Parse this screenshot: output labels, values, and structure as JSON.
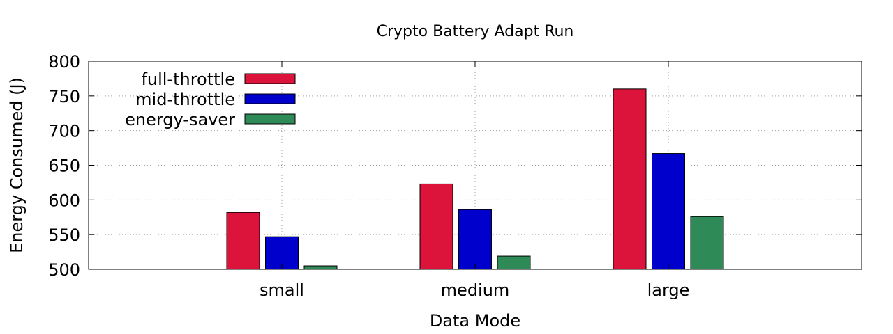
{
  "chart_data": {
    "type": "bar",
    "title": "Crypto Battery Adapt Run",
    "xlabel": "Data Mode",
    "ylabel": "Energy Consumed (J)",
    "categories": [
      "small",
      "medium",
      "large"
    ],
    "ylim": [
      500,
      800
    ],
    "yticks": [
      500,
      550,
      600,
      650,
      700,
      750,
      800
    ],
    "grid": true,
    "legend_position": "top-left",
    "series": [
      {
        "name": "full-throttle",
        "color": "#dc143c",
        "values": [
          582,
          623,
          760
        ]
      },
      {
        "name": "mid-throttle",
        "color": "#0000cd",
        "values": [
          547,
          586,
          667
        ]
      },
      {
        "name": "energy-saver",
        "color": "#2e8b57",
        "values": [
          505,
          519,
          576
        ]
      }
    ]
  }
}
